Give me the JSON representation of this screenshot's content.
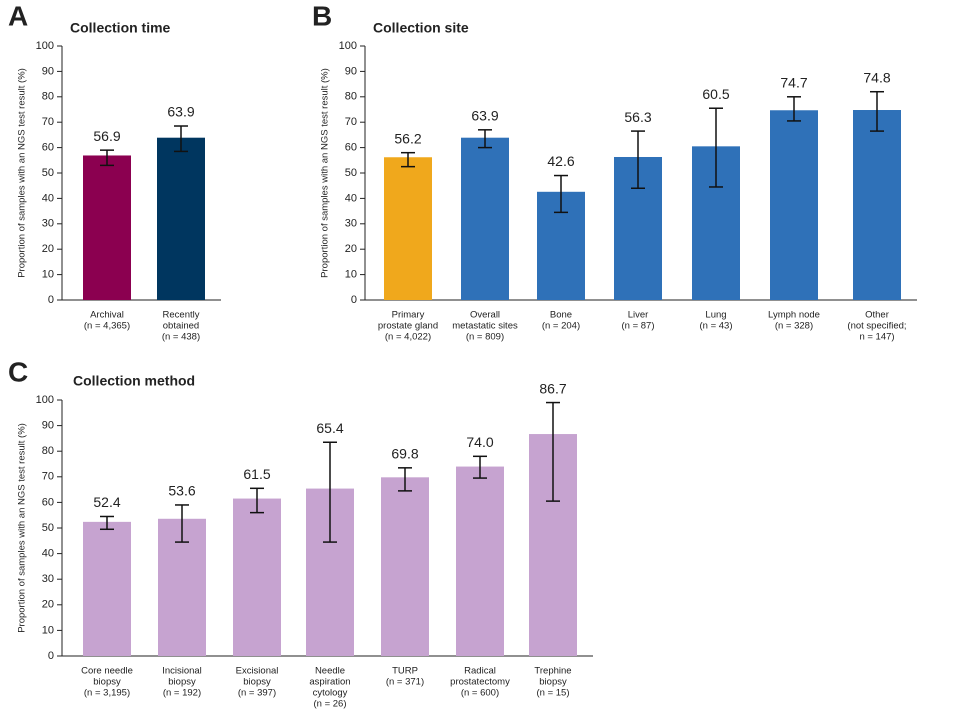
{
  "chart_data": [
    {
      "type": "bar",
      "panel": "A",
      "title": "Collection time",
      "ylabel": "Proportion of samples with an NGS test result (%)",
      "categories": [
        [
          "Archival",
          "(n = 4,365)"
        ],
        [
          "Recently",
          "obtained",
          "(n = 438)"
        ]
      ],
      "values": [
        56.9,
        63.9
      ],
      "value_labels": [
        "56.9",
        "63.9"
      ],
      "ci": [
        [
          53,
          59
        ],
        [
          58.5,
          68.5
        ]
      ],
      "colors": [
        "#8b0050",
        "#00365f"
      ],
      "ylim": [
        0,
        100
      ],
      "yticks": [
        0,
        10,
        20,
        30,
        40,
        50,
        60,
        70,
        80,
        90,
        100
      ]
    },
    {
      "type": "bar",
      "panel": "B",
      "title": "Collection site",
      "ylabel": "Proportion of samples with an NGS test result (%)",
      "categories": [
        [
          "Primary",
          "prostate gland",
          "(n = 4,022)"
        ],
        [
          "Overall",
          "metastatic sites",
          "(n = 809)"
        ],
        [
          "Bone",
          "(n = 204)"
        ],
        [
          "Liver",
          "(n = 87)"
        ],
        [
          "Lung",
          "(n = 43)"
        ],
        [
          "Lymph node",
          "(n = 328)"
        ],
        [
          "Other",
          "(not specified;",
          "n = 147)"
        ]
      ],
      "values": [
        56.2,
        63.9,
        42.6,
        56.3,
        60.5,
        74.7,
        74.8
      ],
      "value_labels": [
        "56.2",
        "63.9",
        "42.6",
        "56.3",
        "60.5",
        "74.7",
        "74.8"
      ],
      "ci": [
        [
          52.5,
          58
        ],
        [
          60,
          67
        ],
        [
          34.5,
          49
        ],
        [
          44,
          66.5
        ],
        [
          44.5,
          75.5
        ],
        [
          70.5,
          80
        ],
        [
          66.5,
          82
        ]
      ],
      "colors": [
        "#f0a81c",
        "#2f71b8",
        "#2f71b8",
        "#2f71b8",
        "#2f71b8",
        "#2f71b8",
        "#2f71b8"
      ],
      "ylim": [
        0,
        100
      ],
      "yticks": [
        0,
        10,
        20,
        30,
        40,
        50,
        60,
        70,
        80,
        90,
        100
      ]
    },
    {
      "type": "bar",
      "panel": "C",
      "title": "Collection method",
      "ylabel": "Proportion of samples with an NGS test result (%)",
      "categories": [
        [
          "Core needle",
          "biopsy",
          "(n = 3,195)"
        ],
        [
          "Incisional",
          "biopsy",
          "(n = 192)"
        ],
        [
          "Excisional",
          "biopsy",
          "(n = 397)"
        ],
        [
          "Needle",
          "aspiration",
          "cytology",
          "(n = 26)"
        ],
        [
          "TURP",
          "(n = 371)"
        ],
        [
          "Radical",
          "prostatectomy",
          "(n = 600)"
        ],
        [
          "Trephine",
          "biopsy",
          "(n = 15)"
        ]
      ],
      "values": [
        52.4,
        53.6,
        61.5,
        65.4,
        69.8,
        74.0,
        86.7
      ],
      "value_labels": [
        "52.4",
        "53.6",
        "61.5",
        "65.4",
        "69.8",
        "74.0",
        "86.7"
      ],
      "ci": [
        [
          49.5,
          54.5
        ],
        [
          44.5,
          59
        ],
        [
          56,
          65.5
        ],
        [
          44.5,
          83.5
        ],
        [
          64.5,
          73.5
        ],
        [
          69.5,
          78
        ],
        [
          60.5,
          99
        ]
      ],
      "colors": [
        "#c6a3d0",
        "#c6a3d0",
        "#c6a3d0",
        "#c6a3d0",
        "#c6a3d0",
        "#c6a3d0",
        "#c6a3d0"
      ],
      "ylim": [
        0,
        100
      ],
      "yticks": [
        0,
        10,
        20,
        30,
        40,
        50,
        60,
        70,
        80,
        90,
        100
      ]
    }
  ]
}
